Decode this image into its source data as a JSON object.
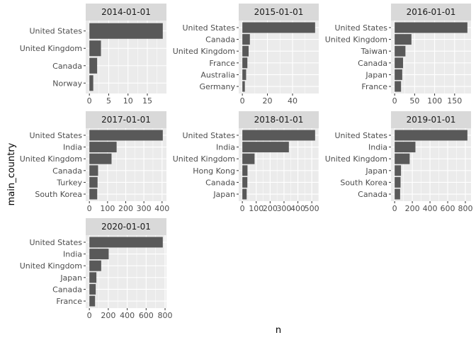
{
  "chart_data": {
    "type": "bar",
    "orientation": "horizontal",
    "xlabel": "n",
    "ylabel": "main_country",
    "grid": true,
    "bar_color": "#595959",
    "panel_color": "#ebebeb",
    "strip_color": "#d9d9d9",
    "panels": [
      {
        "title": "2014-01-01",
        "categories": [
          "United States",
          "United Kingdom",
          "Canada",
          "Norway"
        ],
        "values": [
          19,
          3,
          2,
          1
        ],
        "xlim": [
          -0.95,
          19.95
        ],
        "ticks": [
          0,
          5,
          10,
          15
        ]
      },
      {
        "title": "2015-01-01",
        "categories": [
          "United States",
          "Canada",
          "United Kingdom",
          "France",
          "Australia",
          "Germany"
        ],
        "values": [
          58,
          6,
          5,
          4,
          3,
          2
        ],
        "xlim": [
          -2.9,
          60.9
        ],
        "ticks": [
          0,
          20,
          40
        ]
      },
      {
        "title": "2016-01-01",
        "categories": [
          "United States",
          "United Kingdom",
          "Taiwan",
          "Canada",
          "Japan",
          "France"
        ],
        "values": [
          182,
          42,
          27,
          21,
          19,
          16
        ],
        "xlim": [
          -9.1,
          191.1
        ],
        "ticks": [
          0,
          50,
          100,
          150
        ]
      },
      {
        "title": "2017-01-01",
        "categories": [
          "United States",
          "India",
          "United Kingdom",
          "Canada",
          "Turkey",
          "South Korea"
        ],
        "values": [
          404,
          150,
          122,
          48,
          45,
          43
        ],
        "xlim": [
          -20.2,
          424.2
        ],
        "ticks": [
          0,
          100,
          200,
          300,
          400
        ]
      },
      {
        "title": "2018-01-01",
        "categories": [
          "United States",
          "India",
          "United Kingdom",
          "Hong Kong",
          "Canada",
          "Japan"
        ],
        "values": [
          524,
          335,
          88,
          37,
          36,
          31
        ],
        "xlim": [
          -26.2,
          550.2
        ],
        "ticks": [
          0,
          100,
          200,
          300,
          400,
          500
        ]
      },
      {
        "title": "2019-01-01",
        "categories": [
          "United States",
          "India",
          "United Kingdom",
          "Japan",
          "South Korea",
          "Canada"
        ],
        "values": [
          823,
          235,
          170,
          72,
          67,
          62
        ],
        "xlim": [
          -41.15,
          864.15
        ],
        "ticks": [
          0,
          200,
          400,
          600,
          800
        ]
      },
      {
        "title": "2020-01-01",
        "categories": [
          "United States",
          "India",
          "United Kingdom",
          "Japan",
          "Canada",
          "France"
        ],
        "values": [
          776,
          204,
          125,
          74,
          67,
          60
        ],
        "xlim": [
          -38.8,
          814.8
        ],
        "ticks": [
          0,
          200,
          400,
          600,
          800
        ]
      }
    ]
  }
}
